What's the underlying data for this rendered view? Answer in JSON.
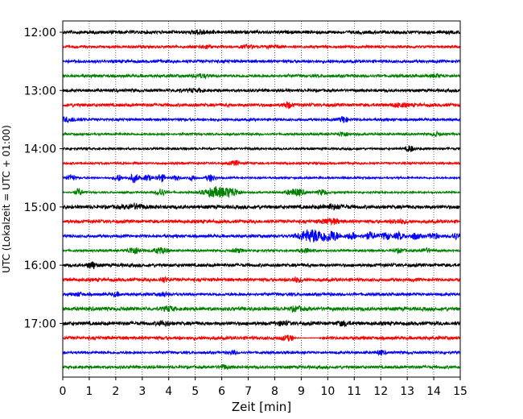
{
  "chart_data": {
    "type": "line",
    "subtype": "helicorder",
    "xlabel": "Zeit  [min]",
    "ylabel": "UTC (Lokalzeit = UTC + 01:00)",
    "xlim": [
      0,
      15
    ],
    "xticks": [
      "0",
      "1",
      "2",
      "3",
      "4",
      "5",
      "6",
      "7",
      "8",
      "9",
      "10",
      "11",
      "12",
      "13",
      "14",
      "15"
    ],
    "yticks": [
      {
        "label": "12:00",
        "trace": 0
      },
      {
        "label": "13:00",
        "trace": 4
      },
      {
        "label": "14:00",
        "trace": 8
      },
      {
        "label": "15:00",
        "trace": 12
      },
      {
        "label": "16:00",
        "trace": 16
      },
      {
        "label": "17:00",
        "trace": 20
      }
    ],
    "grid": "vertical-dotted",
    "color_cycle": [
      "#000000",
      "#ff0000",
      "#0000ff",
      "#008000"
    ],
    "trace_interval_min": 15,
    "start": "12:00",
    "traces": [
      {
        "bg": 0.45,
        "events": [
          {
            "t": 5.2,
            "a": 0.55,
            "d": 0.2
          }
        ]
      },
      {
        "bg": 0.35,
        "events": [
          {
            "t": 5.4,
            "a": 0.45,
            "d": 0.15
          },
          {
            "t": 7.0,
            "a": 0.35,
            "d": 0.2
          },
          {
            "t": 8.0,
            "a": 0.35,
            "d": 0.2
          }
        ]
      },
      {
        "bg": 0.4,
        "events": []
      },
      {
        "bg": 0.4,
        "events": [
          {
            "t": 5.2,
            "a": 0.45,
            "d": 0.2
          },
          {
            "t": 14.1,
            "a": 0.3,
            "d": 0.15
          }
        ]
      },
      {
        "bg": 0.4,
        "events": [
          {
            "t": 4.4,
            "a": 0.4,
            "d": 0.08
          },
          {
            "t": 4.9,
            "a": 0.45,
            "d": 0.08
          },
          {
            "t": 5.2,
            "a": 0.35,
            "d": 0.08
          }
        ]
      },
      {
        "bg": 0.45,
        "events": [
          {
            "t": 8.5,
            "a": 0.7,
            "d": 0.12
          },
          {
            "t": 12.7,
            "a": 0.45,
            "d": 0.2
          }
        ]
      },
      {
        "bg": 0.35,
        "events": [
          {
            "t": 0.2,
            "a": 0.5,
            "d": 0.3
          },
          {
            "t": 10.6,
            "a": 0.9,
            "d": 0.1
          }
        ]
      },
      {
        "bg": 0.3,
        "events": [
          {
            "t": 10.6,
            "a": 0.55,
            "d": 0.15
          },
          {
            "t": 14.1,
            "a": 0.55,
            "d": 0.12
          }
        ]
      },
      {
        "bg": 0.3,
        "events": [
          {
            "t": 13.1,
            "a": 0.85,
            "d": 0.1
          }
        ]
      },
      {
        "bg": 0.3,
        "events": [
          {
            "t": 6.5,
            "a": 0.65,
            "d": 0.12
          }
        ]
      },
      {
        "bg": 0.25,
        "events": [
          {
            "t": 0.3,
            "a": 0.9,
            "d": 0.12
          },
          {
            "t": 2.1,
            "a": 0.9,
            "d": 0.1
          },
          {
            "t": 2.7,
            "a": 1.2,
            "d": 0.12
          },
          {
            "t": 3.2,
            "a": 0.9,
            "d": 0.1
          },
          {
            "t": 3.7,
            "a": 1.0,
            "d": 0.12
          },
          {
            "t": 4.3,
            "a": 0.7,
            "d": 0.1
          },
          {
            "t": 4.9,
            "a": 0.7,
            "d": 0.1
          },
          {
            "t": 5.6,
            "a": 1.0,
            "d": 0.12
          }
        ]
      },
      {
        "bg": 0.25,
        "events": [
          {
            "t": 0.6,
            "a": 1.0,
            "d": 0.1
          },
          {
            "t": 3.7,
            "a": 1.1,
            "d": 0.12
          },
          {
            "t": 5.8,
            "a": 1.4,
            "d": 0.35
          },
          {
            "t": 6.4,
            "a": 1.0,
            "d": 0.2
          },
          {
            "t": 8.8,
            "a": 1.0,
            "d": 0.25
          },
          {
            "t": 9.8,
            "a": 0.8,
            "d": 0.12
          }
        ]
      },
      {
        "bg": 0.5,
        "events": [
          {
            "t": 2.7,
            "a": 0.55,
            "d": 0.3
          },
          {
            "t": 10.2,
            "a": 0.5,
            "d": 0.3
          }
        ]
      },
      {
        "bg": 0.45,
        "events": [
          {
            "t": 10.1,
            "a": 0.7,
            "d": 0.25
          },
          {
            "t": 12.7,
            "a": 0.5,
            "d": 0.2
          }
        ]
      },
      {
        "bg": 0.4,
        "events": [
          {
            "t": 9.2,
            "a": 1.2,
            "d": 0.25
          },
          {
            "t": 9.7,
            "a": 1.3,
            "d": 0.3
          },
          {
            "t": 10.2,
            "a": 1.0,
            "d": 0.2
          },
          {
            "t": 10.9,
            "a": 0.9,
            "d": 0.12
          },
          {
            "t": 11.6,
            "a": 0.9,
            "d": 0.15
          },
          {
            "t": 12.2,
            "a": 0.9,
            "d": 0.12
          },
          {
            "t": 12.7,
            "a": 0.9,
            "d": 0.12
          },
          {
            "t": 13.3,
            "a": 0.8,
            "d": 0.12
          },
          {
            "t": 14.0,
            "a": 0.8,
            "d": 0.12
          },
          {
            "t": 14.8,
            "a": 0.8,
            "d": 0.1
          }
        ]
      },
      {
        "bg": 0.3,
        "events": [
          {
            "t": 2.7,
            "a": 0.9,
            "d": 0.2
          },
          {
            "t": 3.7,
            "a": 0.8,
            "d": 0.2
          },
          {
            "t": 6.6,
            "a": 0.5,
            "d": 0.15
          },
          {
            "t": 9.2,
            "a": 0.55,
            "d": 0.2
          },
          {
            "t": 12.7,
            "a": 0.5,
            "d": 0.15
          },
          {
            "t": 13.7,
            "a": 0.55,
            "d": 0.15
          }
        ]
      },
      {
        "bg": 0.45,
        "events": [
          {
            "t": 1.1,
            "a": 0.9,
            "d": 0.12
          }
        ]
      },
      {
        "bg": 0.45,
        "events": [
          {
            "t": 3.8,
            "a": 0.6,
            "d": 0.1
          },
          {
            "t": 8.8,
            "a": 0.55,
            "d": 0.15
          }
        ]
      },
      {
        "bg": 0.4,
        "events": [
          {
            "t": 0.6,
            "a": 0.45,
            "d": 0.1
          },
          {
            "t": 2.0,
            "a": 0.45,
            "d": 0.1
          },
          {
            "t": 3.8,
            "a": 0.5,
            "d": 0.1
          }
        ]
      },
      {
        "bg": 0.5,
        "events": [
          {
            "t": 4.0,
            "a": 0.55,
            "d": 0.15
          },
          {
            "t": 8.8,
            "a": 0.5,
            "d": 0.15
          }
        ]
      },
      {
        "bg": 0.5,
        "events": [
          {
            "t": 3.8,
            "a": 0.5,
            "d": 0.15
          },
          {
            "t": 8.3,
            "a": 0.5,
            "d": 0.15
          },
          {
            "t": 10.6,
            "a": 0.5,
            "d": 0.15
          }
        ]
      },
      {
        "bg": 0.45,
        "events": [
          {
            "t": 8.5,
            "a": 0.55,
            "d": 0.2
          }
        ],
        "quiet": [
          8.7,
          9.7
        ]
      },
      {
        "bg": 0.35,
        "events": [
          {
            "t": 6.4,
            "a": 0.5,
            "d": 0.1
          },
          {
            "t": 12.0,
            "a": 0.5,
            "d": 0.12
          }
        ]
      },
      {
        "bg": 0.4,
        "events": [
          {
            "t": 6.1,
            "a": 0.5,
            "d": 0.12
          }
        ]
      }
    ]
  }
}
